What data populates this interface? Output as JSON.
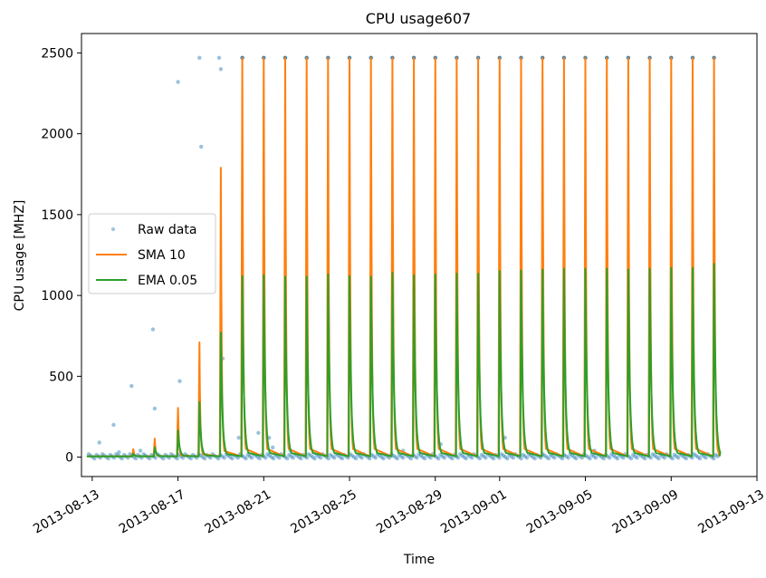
{
  "chart_data": {
    "type": "line",
    "title": "CPU usage607",
    "xlabel": "Time",
    "ylabel": "CPU usage [MHZ]",
    "x_ticks": [
      "2013-08-13",
      "2013-08-17",
      "2013-08-21",
      "2013-08-25",
      "2013-08-29",
      "2013-09-01",
      "2013-09-05",
      "2013-09-09",
      "2013-09-13"
    ],
    "y_ticks": [
      0,
      500,
      1000,
      1500,
      2000,
      2500
    ],
    "xlim": [
      "2013-08-12T12:00",
      "2013-09-13T00:00"
    ],
    "ylim": [
      -120,
      2620
    ],
    "grid": false,
    "legend_position": "center-left",
    "baseline": 5,
    "series": [
      {
        "name": "Raw data",
        "style": "scatter",
        "color": "#1f77b4",
        "points": [
          {
            "x": "2013-08-13T08:00",
            "y": 90
          },
          {
            "x": "2013-08-14T00:00",
            "y": 200
          },
          {
            "x": "2013-08-14T06:00",
            "y": 30
          },
          {
            "x": "2013-08-14T20:00",
            "y": 440
          },
          {
            "x": "2013-08-15T06:00",
            "y": 40
          },
          {
            "x": "2013-08-15T20:00",
            "y": 790
          },
          {
            "x": "2013-08-15T22:00",
            "y": 300
          },
          {
            "x": "2013-08-17T00:00",
            "y": 2320
          },
          {
            "x": "2013-08-17T02:00",
            "y": 470
          },
          {
            "x": "2013-08-18T00:00",
            "y": 2470
          },
          {
            "x": "2013-08-18T02:00",
            "y": 1920
          },
          {
            "x": "2013-08-18T22:00",
            "y": 2470
          },
          {
            "x": "2013-08-19T00:00",
            "y": 2400
          },
          {
            "x": "2013-08-19T02:00",
            "y": 610
          },
          {
            "x": "2013-08-19T20:00",
            "y": 120
          },
          {
            "x": "2013-08-20T18:00",
            "y": 150
          },
          {
            "x": "2013-08-21T06:00",
            "y": 120
          },
          {
            "x": "2013-08-21T10:00",
            "y": 60
          },
          {
            "x": "2013-08-22T06:00",
            "y": 40
          },
          {
            "x": "2013-08-23T08:00",
            "y": 30
          },
          {
            "x": "2013-08-27T12:00",
            "y": 40
          },
          {
            "x": "2013-08-29T06:00",
            "y": 80
          },
          {
            "x": "2013-09-01T06:00",
            "y": 120
          },
          {
            "x": "2013-09-05T04:00",
            "y": 100
          },
          {
            "x": "2013-09-05T10:00",
            "y": 40
          }
        ]
      },
      {
        "name": "SMA 10",
        "style": "line",
        "color": "#ff7f0e",
        "peaks": [
          {
            "x": "2013-08-14T22:00",
            "y": 50
          },
          {
            "x": "2013-08-15T22:00",
            "y": 115
          },
          {
            "x": "2013-08-17T00:00",
            "y": 305
          },
          {
            "x": "2013-08-18T00:00",
            "y": 710
          },
          {
            "x": "2013-08-19T00:00",
            "y": 1790
          },
          {
            "x": "2013-08-20T00:00",
            "y": 2470
          },
          {
            "x": "2013-08-21T00:00",
            "y": 2470
          },
          {
            "x": "2013-08-22T00:00",
            "y": 2470
          },
          {
            "x": "2013-08-23T00:00",
            "y": 2470
          },
          {
            "x": "2013-08-24T00:00",
            "y": 2470
          },
          {
            "x": "2013-08-25T00:00",
            "y": 2470
          },
          {
            "x": "2013-08-26T00:00",
            "y": 2470
          },
          {
            "x": "2013-08-27T00:00",
            "y": 2470
          },
          {
            "x": "2013-08-28T00:00",
            "y": 2470
          },
          {
            "x": "2013-08-29T00:00",
            "y": 2470
          },
          {
            "x": "2013-08-30T00:00",
            "y": 2470
          },
          {
            "x": "2013-08-31T00:00",
            "y": 2470
          },
          {
            "x": "2013-09-01T00:00",
            "y": 2470
          },
          {
            "x": "2013-09-02T00:00",
            "y": 2470
          },
          {
            "x": "2013-09-03T00:00",
            "y": 2470
          },
          {
            "x": "2013-09-04T00:00",
            "y": 2470
          },
          {
            "x": "2013-09-05T00:00",
            "y": 2470
          },
          {
            "x": "2013-09-06T00:00",
            "y": 2470
          },
          {
            "x": "2013-09-07T00:00",
            "y": 2470
          },
          {
            "x": "2013-09-08T00:00",
            "y": 2470
          },
          {
            "x": "2013-09-09T00:00",
            "y": 2470
          },
          {
            "x": "2013-09-10T00:00",
            "y": 2470
          },
          {
            "x": "2013-09-11T00:00",
            "y": 2470
          }
        ]
      },
      {
        "name": "EMA 0.05",
        "style": "line",
        "color": "#2ca02c",
        "peaks": [
          {
            "x": "2013-08-14T22:00",
            "y": 20
          },
          {
            "x": "2013-08-15T22:00",
            "y": 60
          },
          {
            "x": "2013-08-17T00:00",
            "y": 165
          },
          {
            "x": "2013-08-18T00:00",
            "y": 340
          },
          {
            "x": "2013-08-19T00:00",
            "y": 770
          },
          {
            "x": "2013-08-20T00:00",
            "y": 1120
          },
          {
            "x": "2013-08-21T00:00",
            "y": 1125
          },
          {
            "x": "2013-08-22T00:00",
            "y": 1115
          },
          {
            "x": "2013-08-23T00:00",
            "y": 1115
          },
          {
            "x": "2013-08-24T00:00",
            "y": 1130
          },
          {
            "x": "2013-08-25T00:00",
            "y": 1120
          },
          {
            "x": "2013-08-26T00:00",
            "y": 1115
          },
          {
            "x": "2013-08-27T00:00",
            "y": 1140
          },
          {
            "x": "2013-08-28T00:00",
            "y": 1125
          },
          {
            "x": "2013-08-29T00:00",
            "y": 1130
          },
          {
            "x": "2013-08-30T00:00",
            "y": 1135
          },
          {
            "x": "2013-08-31T00:00",
            "y": 1135
          },
          {
            "x": "2013-09-01T00:00",
            "y": 1150
          },
          {
            "x": "2013-09-02T00:00",
            "y": 1155
          },
          {
            "x": "2013-09-03T00:00",
            "y": 1160
          },
          {
            "x": "2013-09-04T00:00",
            "y": 1165
          },
          {
            "x": "2013-09-05T00:00",
            "y": 1165
          },
          {
            "x": "2013-09-06T00:00",
            "y": 1165
          },
          {
            "x": "2013-09-07T00:00",
            "y": 1160
          },
          {
            "x": "2013-09-08T00:00",
            "y": 1165
          },
          {
            "x": "2013-09-09T00:00",
            "y": 1170
          },
          {
            "x": "2013-09-10T00:00",
            "y": 1170
          },
          {
            "x": "2013-09-11T00:00",
            "y": 1195
          }
        ]
      }
    ]
  }
}
